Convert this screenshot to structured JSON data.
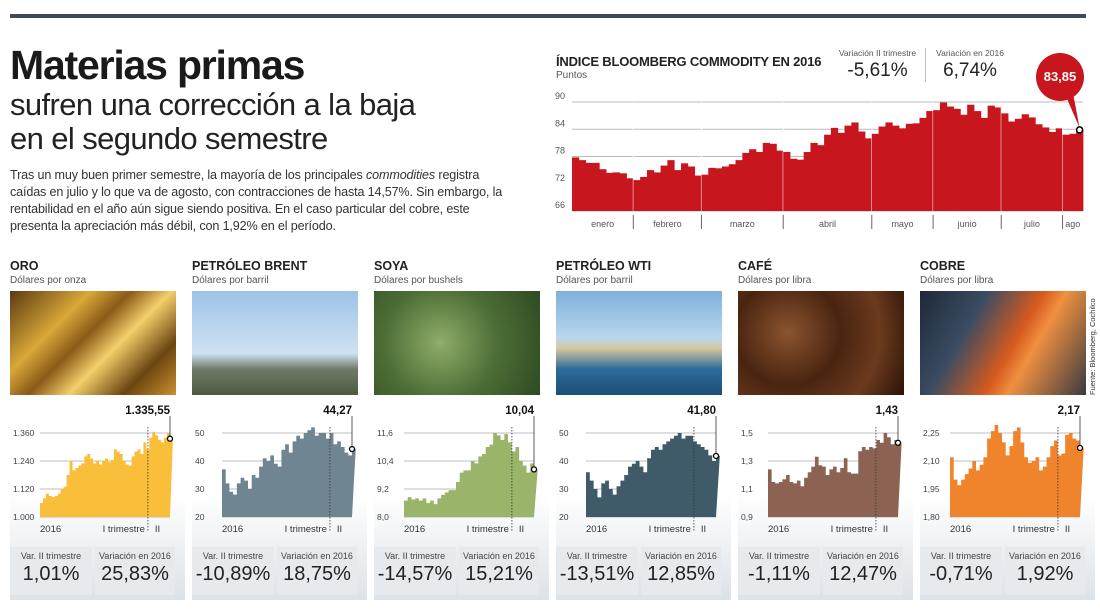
{
  "header": {
    "title": "Materias primas",
    "subtitle_lines": [
      "sufren una corrección a la baja",
      "en el segundo semestre"
    ],
    "lead": {
      "l1a": "Tras un muy buen primer semestre, la mayoría de los principales ",
      "l1b": "commodities",
      "l1c": " registra",
      "l2": "caídas en julio y lo que va de agosto, con contracciones de hasta 14,57%. Sin embargo, la",
      "l3": "rentabilidad en el año aún sigue siendo positiva. En el caso particular del cobre, este",
      "l4": "presenta la apreciación más débil, con 1,92% en el período."
    }
  },
  "source": "Fuente: Bloomberg, Cochilco",
  "colors": {
    "main": "#c8161e"
  },
  "chart_data": [
    {
      "type": "bar",
      "title": "ÍNDICE BLOOMBERG COMMODITY EN 2016",
      "ylabel": "Puntos",
      "ylim": [
        66,
        90
      ],
      "yticks": [
        "90",
        "84",
        "78",
        "72",
        "66"
      ],
      "ytick_values": [
        90,
        84,
        78,
        72,
        66
      ],
      "stat_q2_label": "Variación II trimestre",
      "stat_q2": "-5,61%",
      "stat_year_label": "Variación en 2016",
      "stat_year": "6,74%",
      "last_label": "83,85",
      "months": [
        {
          "name": "enero",
          "values": [
            77.8,
            77.2,
            76.6,
            76.6,
            75.2,
            74.4,
            74.5,
            74.3,
            73.2
          ]
        },
        {
          "name": "febrero",
          "values": [
            72.8,
            73.5,
            75.0,
            74.5,
            76.0,
            77.2,
            75.0,
            76.5,
            75.8,
            73.8
          ]
        },
        {
          "name": "marzo",
          "values": [
            74.0,
            75.5,
            75.4,
            75.8,
            76.3,
            77.2,
            78.8,
            79.6,
            79.0,
            81.0,
            80.8,
            79.3
          ]
        },
        {
          "name": "abril",
          "values": [
            79.0,
            77.5,
            77.3,
            79.0,
            81.0,
            80.5,
            82.8,
            84.3,
            83.2,
            84.8,
            85.5,
            83.5,
            82.0
          ]
        },
        {
          "name": "mayo",
          "values": [
            83.0,
            84.6,
            85.5,
            84.8,
            84.2,
            85.2,
            85.3,
            86.5,
            88.0
          ]
        },
        {
          "name": "junio",
          "values": [
            88.2,
            89.9,
            89.0,
            88.5,
            87.2,
            89.4,
            88.0,
            86.5,
            89.2,
            88.8
          ]
        },
        {
          "name": "julio",
          "values": [
            87.5,
            85.7,
            86.3,
            87.3,
            86.6,
            85.1,
            84.4,
            83.4,
            84.2
          ]
        },
        {
          "name": "ago",
          "values": [
            82.8,
            83.0,
            83.85
          ]
        }
      ]
    },
    {
      "type": "area",
      "title": "ORO",
      "unit": "Dólares por onza",
      "color": "#f9bf3b",
      "ylim": [
        1000,
        1360
      ],
      "yticks": [
        "1.360",
        "1.240",
        "1.120",
        "1.000"
      ],
      "ytick_values": [
        1360,
        1240,
        1120,
        1000
      ],
      "last_label": "1.335,55",
      "x_labels": [
        "2016",
        "I trimestre",
        "II"
      ],
      "stat_q2_label": "Var. II trimestre",
      "stat_q2": "1,01%",
      "stat_year_label": "Variación en 2016",
      "stat_year": "25,83%",
      "values": [
        1060,
        1080,
        1100,
        1090,
        1085,
        1090,
        1100,
        1120,
        1130,
        1180,
        1240,
        1200,
        1210,
        1220,
        1230,
        1260,
        1270,
        1250,
        1230,
        1240,
        1225,
        1240,
        1250,
        1235,
        1245,
        1290,
        1280,
        1270,
        1240,
        1225,
        1220,
        1260,
        1280,
        1290,
        1270,
        1320,
        1290,
        1340,
        1365,
        1350,
        1330,
        1320,
        1340,
        1360,
        1335.55
      ]
    },
    {
      "type": "area",
      "title": "PETRÓLEO BRENT",
      "unit": "Dólares por barril",
      "color": "#6f8591",
      "ylim": [
        20,
        50
      ],
      "yticks": [
        "50",
        "40",
        "30",
        "20"
      ],
      "ytick_values": [
        50,
        40,
        30,
        20
      ],
      "last_label": "44,27",
      "x_labels": [
        "2016",
        "I trimestre",
        "II"
      ],
      "stat_q2_label": "Var. II trimestre",
      "stat_q2": "-10,89%",
      "stat_year_label": "Variación en 2016",
      "stat_year": "18,75%",
      "values": [
        37,
        32,
        29,
        28,
        32,
        34,
        33,
        30,
        35,
        34,
        38,
        41,
        40,
        42,
        39,
        38,
        44,
        46,
        43,
        47,
        49,
        48,
        50,
        51,
        52,
        49,
        50,
        50,
        48,
        50,
        46,
        47,
        45,
        43,
        42,
        44.27
      ]
    },
    {
      "type": "area",
      "title": "SOYA",
      "unit": "Dólares por bushels",
      "color": "#9ab46a",
      "ylim": [
        8.0,
        11.6
      ],
      "yticks": [
        "11,6",
        "10,4",
        "9,2",
        "8,0"
      ],
      "ytick_values": [
        11.6,
        10.4,
        9.2,
        8.0
      ],
      "last_label": "10,04",
      "x_labels": [
        "2016",
        "I trimestre",
        "II"
      ],
      "stat_q2_label": "Var. II trimestre",
      "stat_q2": "-14,57%",
      "stat_year_label": "Variación en 2016",
      "stat_year": "15,21%",
      "values": [
        8.7,
        8.85,
        8.75,
        8.8,
        8.7,
        8.8,
        8.6,
        8.7,
        8.55,
        8.8,
        8.95,
        9.05,
        9.15,
        9.15,
        9.5,
        9.9,
        10.0,
        10.0,
        10.4,
        10.3,
        10.6,
        10.7,
        11.0,
        11.1,
        11.6,
        11.5,
        11.3,
        11.55,
        11.2,
        10.8,
        11.0,
        10.4,
        10.2,
        9.9,
        10.3,
        10.04
      ]
    },
    {
      "type": "area",
      "title": "PETRÓLEO WTI",
      "unit": "Dólares por barril",
      "color": "#3f5a68",
      "ylim": [
        20,
        50
      ],
      "yticks": [
        "50",
        "40",
        "30",
        "20"
      ],
      "ytick_values": [
        50,
        40,
        30,
        20
      ],
      "last_label": "41,80",
      "x_labels": [
        "2016",
        "I trimestre",
        "II"
      ],
      "stat_q2_label": "Var. II trimestre",
      "stat_q2": "-13,51%",
      "stat_year_label": "Variación en 2016",
      "stat_year": "12,85%",
      "values": [
        36,
        33,
        30,
        27,
        32,
        33,
        30,
        28,
        31,
        33,
        35,
        38,
        39,
        40,
        38,
        36,
        41,
        44,
        45,
        44,
        46,
        47,
        48,
        49,
        50,
        48,
        49,
        49,
        47,
        46,
        45,
        44,
        42,
        40,
        41.8
      ]
    },
    {
      "type": "area",
      "title": "CAFÉ",
      "unit": "Dólares por libra",
      "color": "#8c6353",
      "ylim": [
        0.9,
        1.5
      ],
      "yticks": [
        "1,5",
        "1,3",
        "1,1",
        "0,9"
      ],
      "ytick_values": [
        1.5,
        1.3,
        1.1,
        0.9
      ],
      "last_label": "1,43",
      "x_labels": [
        "2016",
        "I trimestre",
        "II"
      ],
      "stat_q2_label": "Var. II trimestre",
      "stat_q2": "-1,11%",
      "stat_year_label": "Variación en 2016",
      "stat_year": "12,47%",
      "values": [
        1.24,
        1.15,
        1.14,
        1.15,
        1.17,
        1.2,
        1.15,
        1.14,
        1.16,
        1.12,
        1.18,
        1.22,
        1.26,
        1.33,
        1.27,
        1.26,
        1.2,
        1.24,
        1.26,
        1.22,
        1.25,
        1.32,
        1.22,
        1.21,
        1.21,
        1.37,
        1.4,
        1.38,
        1.4,
        1.39,
        1.45,
        1.43,
        1.5,
        1.47,
        1.42,
        1.45,
        1.43
      ]
    },
    {
      "type": "area",
      "title": "COBRE",
      "unit": "Dólares por libra",
      "color": "#f0842c",
      "ylim": [
        1.8,
        2.25
      ],
      "yticks": [
        "2,25",
        "2,10",
        "1,95",
        "1,80"
      ],
      "ytick_values": [
        2.25,
        2.1,
        1.95,
        1.8
      ],
      "last_label": "2,17",
      "x_labels": [
        "2016",
        "I trimestre",
        "II"
      ],
      "stat_q2_label": "Var. II trimestre",
      "stat_q2": "-0,71%",
      "stat_year_label": "Variación en 2016",
      "stat_year": "1,92%",
      "values": [
        2.12,
        2.0,
        1.97,
        2.0,
        2.03,
        2.06,
        2.1,
        2.05,
        2.08,
        2.12,
        2.22,
        2.26,
        2.3,
        2.25,
        2.2,
        2.13,
        2.18,
        2.26,
        2.28,
        2.2,
        2.12,
        2.09,
        2.1,
        2.12,
        2.05,
        2.07,
        2.12,
        2.18,
        2.21,
        2.13,
        2.14,
        2.24,
        2.25,
        2.22,
        2.21,
        2.17
      ]
    }
  ]
}
